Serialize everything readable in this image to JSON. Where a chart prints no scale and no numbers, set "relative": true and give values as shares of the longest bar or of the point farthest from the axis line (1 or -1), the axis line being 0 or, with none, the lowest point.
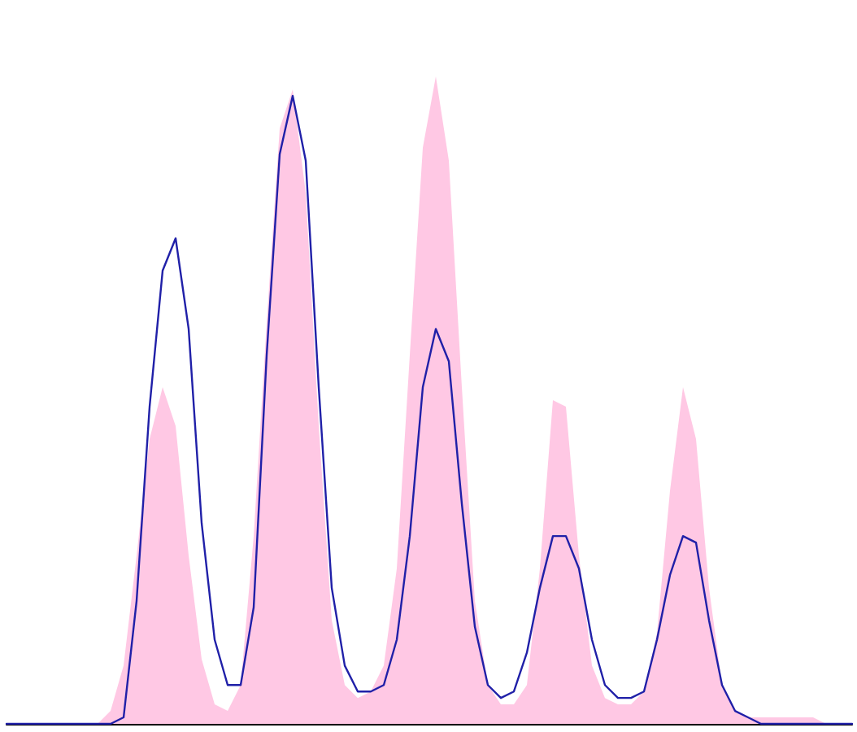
{
  "chart_data": {
    "type": "area",
    "relative": true,
    "categories": [
      null,
      null,
      null,
      null,
      null,
      null,
      null,
      null,
      null,
      null,
      null,
      null,
      null,
      null,
      null,
      null,
      null,
      null,
      null,
      null,
      null,
      null,
      null,
      null,
      null,
      null,
      null,
      null,
      null,
      null,
      null,
      null,
      null,
      null,
      null,
      null,
      null,
      null,
      null,
      null,
      null,
      null,
      null,
      null,
      null,
      null,
      null,
      null,
      null,
      null,
      null,
      null,
      null,
      null,
      null,
      null,
      null,
      null,
      null,
      null,
      null,
      null,
      null,
      null,
      null,
      null
    ],
    "series": [
      {
        "color": "#ffc8e4",
        "values": [
          0,
          0,
          0,
          0,
          0,
          0,
          0,
          0,
          0.02,
          0.09,
          0.26,
          0.44,
          0.52,
          0.46,
          0.26,
          0.1,
          0.03,
          0.02,
          0.06,
          0.29,
          0.62,
          0.92,
          0.98,
          0.82,
          0.46,
          0.16,
          0.06,
          0.04,
          0.05,
          0.09,
          0.24,
          0.57,
          0.89,
          1,
          0.87,
          0.52,
          0.19,
          0.06,
          0.03,
          0.03,
          0.06,
          0.24,
          0.5,
          0.49,
          0.26,
          0.09,
          0.04,
          0.03,
          0.03,
          0.05,
          0.14,
          0.36,
          0.52,
          0.44,
          0.21,
          0.06,
          0.02,
          0.01,
          0.01,
          0.01,
          0.01,
          0.01,
          0.01,
          0,
          0,
          0
        ]
      },
      {
        "type": "line",
        "color": "#2020a8",
        "line_style": "solid",
        "values": [
          0,
          0,
          0,
          0,
          0,
          0,
          0,
          0,
          0,
          0.01,
          0.19,
          0.49,
          0.7,
          0.75,
          0.61,
          0.31,
          0.13,
          0.06,
          0.06,
          0.18,
          0.57,
          0.88,
          0.97,
          0.87,
          0.52,
          0.21,
          0.09,
          0.05,
          0.05,
          0.06,
          0.13,
          0.29,
          0.52,
          0.61,
          0.56,
          0.34,
          0.15,
          0.06,
          0.04,
          0.05,
          0.11,
          0.21,
          0.29,
          0.29,
          0.24,
          0.13,
          0.06,
          0.04,
          0.04,
          0.05,
          0.13,
          0.23,
          0.29,
          0.28,
          0.16,
          0.06,
          0.02,
          0.01,
          0,
          0,
          0,
          0,
          0,
          0,
          0,
          0
        ]
      }
    ]
  }
}
